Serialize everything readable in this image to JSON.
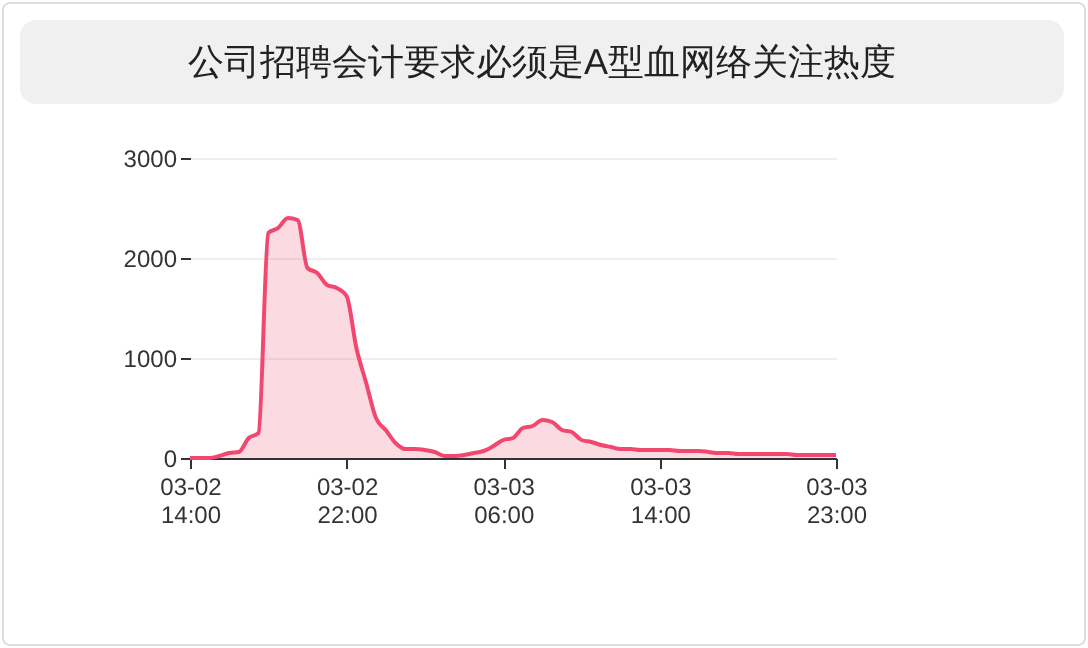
{
  "chart_data": {
    "type": "area",
    "title": "公司招聘会计要求必须是A型血网络关注热度",
    "categories": [
      "03-02 14:00",
      null,
      null,
      null,
      null,
      null,
      null,
      null,
      null,
      null,
      null,
      null,
      null,
      null,
      null,
      null,
      "03-02 22:00",
      null,
      null,
      null,
      null,
      null,
      null,
      null,
      null,
      null,
      null,
      null,
      null,
      null,
      null,
      null,
      "03-03 06:00",
      null,
      null,
      null,
      null,
      null,
      null,
      null,
      null,
      null,
      null,
      null,
      null,
      null,
      null,
      null,
      "03-03 14:00",
      null,
      null,
      null,
      null,
      null,
      null,
      null,
      null,
      null,
      null,
      null,
      null,
      null,
      null,
      null,
      null,
      null,
      "03-03 23:00"
    ],
    "series": [
      {
        "color": "#f2476f",
        "values": [
          0,
          0,
          0,
          20,
          50,
          60,
          200,
          250,
          2250,
          2300,
          2400,
          2380,
          1900,
          1850,
          1730,
          1700,
          1620,
          1100,
          750,
          400,
          280,
          150,
          90,
          90,
          80,
          60,
          20,
          20,
          30,
          50,
          70,
          120,
          180,
          200,
          300,
          320,
          380,
          360,
          280,
          260,
          180,
          160,
          130,
          110,
          90,
          90,
          80,
          80,
          80,
          80,
          70,
          70,
          70,
          60,
          50,
          50,
          40,
          40,
          40,
          40,
          40,
          40,
          30,
          30,
          30,
          30,
          30
        ]
      }
    ],
    "ylim": [
      0,
      3000
    ],
    "yticks": [
      0,
      1000,
      2000,
      3000
    ],
    "grid": "y",
    "marker": "none",
    "line_style": "solid"
  }
}
